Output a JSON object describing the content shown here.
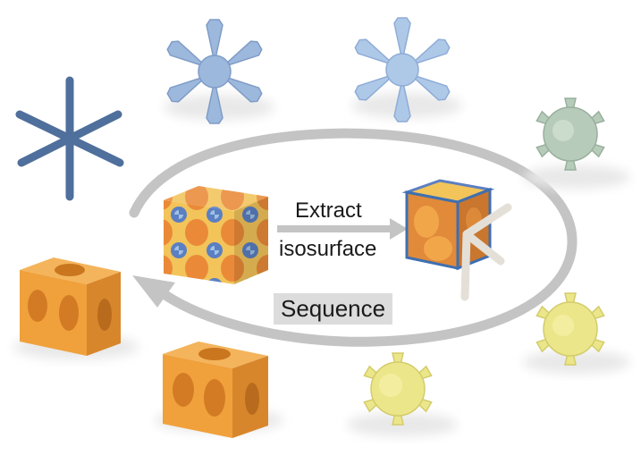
{
  "labels": {
    "extract": "Extract",
    "isosurface": "isosurface",
    "sequence": "Sequence"
  },
  "colors": {
    "graph_blue": "#4f6f9c",
    "blue_light": "#9db8dd",
    "blue_lighter": "#aec8e8",
    "green_pale": "#b7cbbb",
    "yellow": "#ece68a",
    "orange": "#f0a13c",
    "arrow_gray": "#c4c4c4"
  },
  "shapes": [
    {
      "name": "cubic-lattice-graph-icon",
      "color": "graph_blue"
    },
    {
      "name": "jack-shape-blue-1-icon",
      "color": "blue_light"
    },
    {
      "name": "jack-shape-blue-2-icon",
      "color": "blue_lighter"
    },
    {
      "name": "jack-shape-green-icon",
      "color": "green_pale"
    },
    {
      "name": "jack-shape-yellow-1-icon",
      "color": "yellow"
    },
    {
      "name": "jack-shape-yellow-2-icon",
      "color": "yellow"
    },
    {
      "name": "cube-shape-orange-1-icon",
      "color": "orange"
    },
    {
      "name": "cube-shape-orange-2-icon",
      "color": "orange"
    },
    {
      "name": "density-field-cube-icon",
      "color": "orange"
    },
    {
      "name": "isosurface-cube-icon",
      "color": "orange"
    }
  ]
}
